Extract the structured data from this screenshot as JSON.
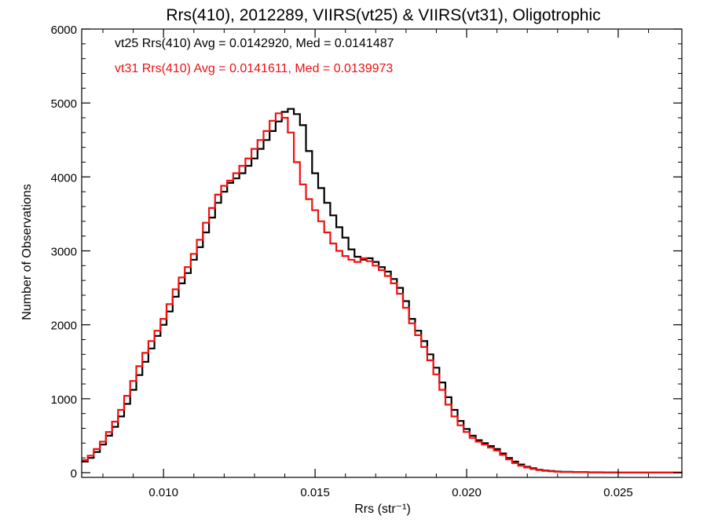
{
  "chart_data": {
    "type": "line",
    "title": "Rrs(410), 2012289, VIIRS(vt25) & VIIRS(vt31), Oligotrophic",
    "xlabel": "Rrs (str⁻¹)",
    "ylabel": "Number of Observations",
    "xlim": [
      0.0073,
      0.0271
    ],
    "ylim": [
      0,
      6000
    ],
    "xticks": [
      0.01,
      0.015,
      0.02,
      0.025
    ],
    "xtick_labels": [
      "0.010",
      "0.015",
      "0.020",
      "0.025"
    ],
    "yticks": [
      0,
      1000,
      2000,
      3000,
      4000,
      5000,
      6000
    ],
    "ytick_labels": [
      "0",
      "1000",
      "2000",
      "3000",
      "4000",
      "5000",
      "6000"
    ],
    "grid": false,
    "legend_position": "top-left",
    "step": "histogram",
    "series": [
      {
        "name": "vt25 Rrs(410) Avg = 0.0142920, Med = 0.0141487",
        "color": "#000000",
        "points": [
          [
            0.0073,
            150
          ],
          [
            0.0075,
            200
          ],
          [
            0.0077,
            280
          ],
          [
            0.0079,
            380
          ],
          [
            0.0081,
            500
          ],
          [
            0.0083,
            620
          ],
          [
            0.0085,
            760
          ],
          [
            0.0087,
            930
          ],
          [
            0.0089,
            1120
          ],
          [
            0.0091,
            1320
          ],
          [
            0.0093,
            1500
          ],
          [
            0.0095,
            1680
          ],
          [
            0.0097,
            1850
          ],
          [
            0.0099,
            2000
          ],
          [
            0.0101,
            2180
          ],
          [
            0.0103,
            2380
          ],
          [
            0.0105,
            2560
          ],
          [
            0.0107,
            2700
          ],
          [
            0.0109,
            2880
          ],
          [
            0.0111,
            3050
          ],
          [
            0.0113,
            3250
          ],
          [
            0.0115,
            3450
          ],
          [
            0.0117,
            3650
          ],
          [
            0.0119,
            3800
          ],
          [
            0.0121,
            3920
          ],
          [
            0.0123,
            3980
          ],
          [
            0.0125,
            4050
          ],
          [
            0.0127,
            4150
          ],
          [
            0.0129,
            4250
          ],
          [
            0.0131,
            4380
          ],
          [
            0.0133,
            4500
          ],
          [
            0.0135,
            4620
          ],
          [
            0.0137,
            4750
          ],
          [
            0.0139,
            4880
          ],
          [
            0.0141,
            4920
          ],
          [
            0.0143,
            4850
          ],
          [
            0.0145,
            4700
          ],
          [
            0.0147,
            4350
          ],
          [
            0.0149,
            4050
          ],
          [
            0.0151,
            3850
          ],
          [
            0.0153,
            3650
          ],
          [
            0.0155,
            3480
          ],
          [
            0.0157,
            3320
          ],
          [
            0.0159,
            3180
          ],
          [
            0.0161,
            3020
          ],
          [
            0.0163,
            2920
          ],
          [
            0.0165,
            2880
          ],
          [
            0.0167,
            2900
          ],
          [
            0.0169,
            2850
          ],
          [
            0.0171,
            2780
          ],
          [
            0.0173,
            2720
          ],
          [
            0.0175,
            2620
          ],
          [
            0.0177,
            2500
          ],
          [
            0.0179,
            2320
          ],
          [
            0.0181,
            2080
          ],
          [
            0.0183,
            1920
          ],
          [
            0.0185,
            1780
          ],
          [
            0.0187,
            1600
          ],
          [
            0.0189,
            1420
          ],
          [
            0.0191,
            1220
          ],
          [
            0.0193,
            1020
          ],
          [
            0.0195,
            850
          ],
          [
            0.0197,
            700
          ],
          [
            0.0199,
            590
          ],
          [
            0.0201,
            500
          ],
          [
            0.0203,
            440
          ],
          [
            0.0205,
            400
          ],
          [
            0.0207,
            360
          ],
          [
            0.0209,
            320
          ],
          [
            0.0211,
            260
          ],
          [
            0.0213,
            200
          ],
          [
            0.0215,
            150
          ],
          [
            0.0217,
            110
          ],
          [
            0.0219,
            80
          ],
          [
            0.0221,
            60
          ],
          [
            0.0223,
            40
          ],
          [
            0.0225,
            30
          ],
          [
            0.0227,
            22
          ],
          [
            0.0229,
            16
          ],
          [
            0.0231,
            12
          ],
          [
            0.0235,
            8
          ],
          [
            0.024,
            5
          ],
          [
            0.0245,
            3
          ],
          [
            0.025,
            2
          ],
          [
            0.026,
            1
          ],
          [
            0.0271,
            0
          ]
        ]
      },
      {
        "name": "vt31 Rrs(410) Avg = 0.0141611, Med = 0.0139973",
        "color": "#ee1111",
        "points": [
          [
            0.0073,
            170
          ],
          [
            0.0075,
            230
          ],
          [
            0.0077,
            320
          ],
          [
            0.0079,
            420
          ],
          [
            0.0081,
            550
          ],
          [
            0.0083,
            690
          ],
          [
            0.0085,
            850
          ],
          [
            0.0087,
            1040
          ],
          [
            0.0089,
            1240
          ],
          [
            0.0091,
            1440
          ],
          [
            0.0093,
            1620
          ],
          [
            0.0095,
            1780
          ],
          [
            0.0097,
            1920
          ],
          [
            0.0099,
            2080
          ],
          [
            0.0101,
            2280
          ],
          [
            0.0103,
            2480
          ],
          [
            0.0105,
            2640
          ],
          [
            0.0107,
            2780
          ],
          [
            0.0109,
            2960
          ],
          [
            0.0111,
            3150
          ],
          [
            0.0113,
            3380
          ],
          [
            0.0115,
            3580
          ],
          [
            0.0117,
            3760
          ],
          [
            0.0119,
            3880
          ],
          [
            0.0121,
            3950
          ],
          [
            0.0123,
            4050
          ],
          [
            0.0125,
            4150
          ],
          [
            0.0127,
            4250
          ],
          [
            0.0129,
            4380
          ],
          [
            0.0131,
            4500
          ],
          [
            0.0133,
            4620
          ],
          [
            0.0135,
            4760
          ],
          [
            0.0137,
            4860
          ],
          [
            0.0139,
            4800
          ],
          [
            0.0141,
            4600
          ],
          [
            0.0143,
            4200
          ],
          [
            0.0145,
            3900
          ],
          [
            0.0147,
            3700
          ],
          [
            0.0149,
            3550
          ],
          [
            0.0151,
            3400
          ],
          [
            0.0153,
            3250
          ],
          [
            0.0155,
            3100
          ],
          [
            0.0157,
            3000
          ],
          [
            0.0159,
            2930
          ],
          [
            0.0161,
            2880
          ],
          [
            0.0163,
            2850
          ],
          [
            0.0165,
            2900
          ],
          [
            0.0167,
            2860
          ],
          [
            0.0169,
            2800
          ],
          [
            0.0171,
            2740
          ],
          [
            0.0173,
            2660
          ],
          [
            0.0175,
            2560
          ],
          [
            0.0177,
            2420
          ],
          [
            0.0179,
            2230
          ],
          [
            0.0181,
            2020
          ],
          [
            0.0183,
            1860
          ],
          [
            0.0185,
            1700
          ],
          [
            0.0187,
            1520
          ],
          [
            0.0189,
            1330
          ],
          [
            0.0191,
            1120
          ],
          [
            0.0193,
            920
          ],
          [
            0.0195,
            760
          ],
          [
            0.0197,
            640
          ],
          [
            0.0199,
            550
          ],
          [
            0.0201,
            470
          ],
          [
            0.0203,
            420
          ],
          [
            0.0205,
            380
          ],
          [
            0.0207,
            340
          ],
          [
            0.0209,
            300
          ],
          [
            0.0211,
            240
          ],
          [
            0.0213,
            180
          ],
          [
            0.0215,
            130
          ],
          [
            0.0217,
            95
          ],
          [
            0.0219,
            70
          ],
          [
            0.0221,
            50
          ],
          [
            0.0223,
            35
          ],
          [
            0.0225,
            25
          ],
          [
            0.0227,
            18
          ],
          [
            0.0229,
            13
          ],
          [
            0.0231,
            10
          ],
          [
            0.0235,
            6
          ],
          [
            0.024,
            4
          ],
          [
            0.0245,
            2
          ],
          [
            0.025,
            1
          ],
          [
            0.026,
            1
          ],
          [
            0.0271,
            0
          ]
        ]
      }
    ]
  }
}
